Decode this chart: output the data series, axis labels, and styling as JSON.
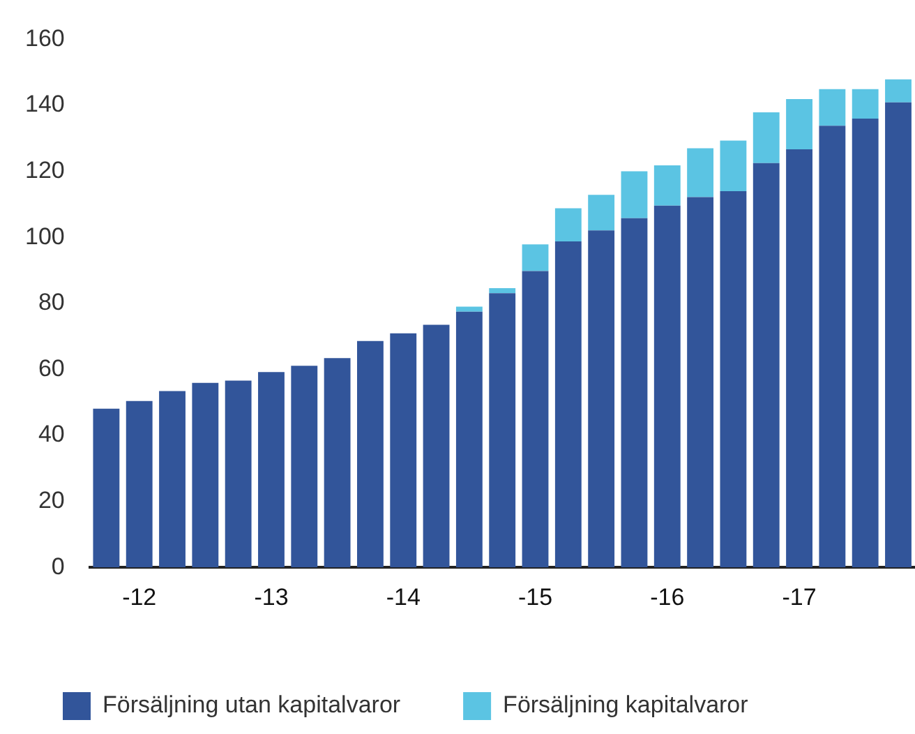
{
  "chart_data": {
    "type": "bar",
    "stacked": true,
    "categories": [
      null,
      "-12",
      null,
      null,
      null,
      "-13",
      null,
      null,
      null,
      "-14",
      null,
      null,
      null,
      "-15",
      null,
      null,
      null,
      "-16",
      null,
      null,
      null,
      "-17",
      null,
      null,
      null
    ],
    "series": [
      {
        "name": "Försäljning utan kapitalvaror",
        "color": "#32559a",
        "values": [
          48.1,
          50.4,
          53.4,
          55.9,
          56.6,
          59.2,
          61.1,
          63.4,
          68.6,
          70.9,
          73.5,
          77.5,
          83.1,
          89.8,
          98.8,
          102.1,
          105.8,
          109.6,
          112.2,
          114.0,
          122.5,
          126.7,
          133.8,
          136.0,
          140.9
        ]
      },
      {
        "name": "Försäljning kapitalvaror",
        "color": "#5bc4e3",
        "values": [
          0,
          0,
          0,
          0,
          0,
          0,
          0,
          0,
          0,
          0,
          0,
          1.5,
          1.5,
          8.1,
          10,
          10.8,
          14.2,
          12.2,
          14.8,
          15.3,
          15.4,
          15.2,
          11.1,
          8.9,
          7.0
        ]
      }
    ],
    "ylim": [
      0,
      160
    ],
    "yticks": [
      0,
      20,
      40,
      60,
      80,
      100,
      120,
      140,
      160
    ],
    "grid": false,
    "legend": "bottom"
  }
}
